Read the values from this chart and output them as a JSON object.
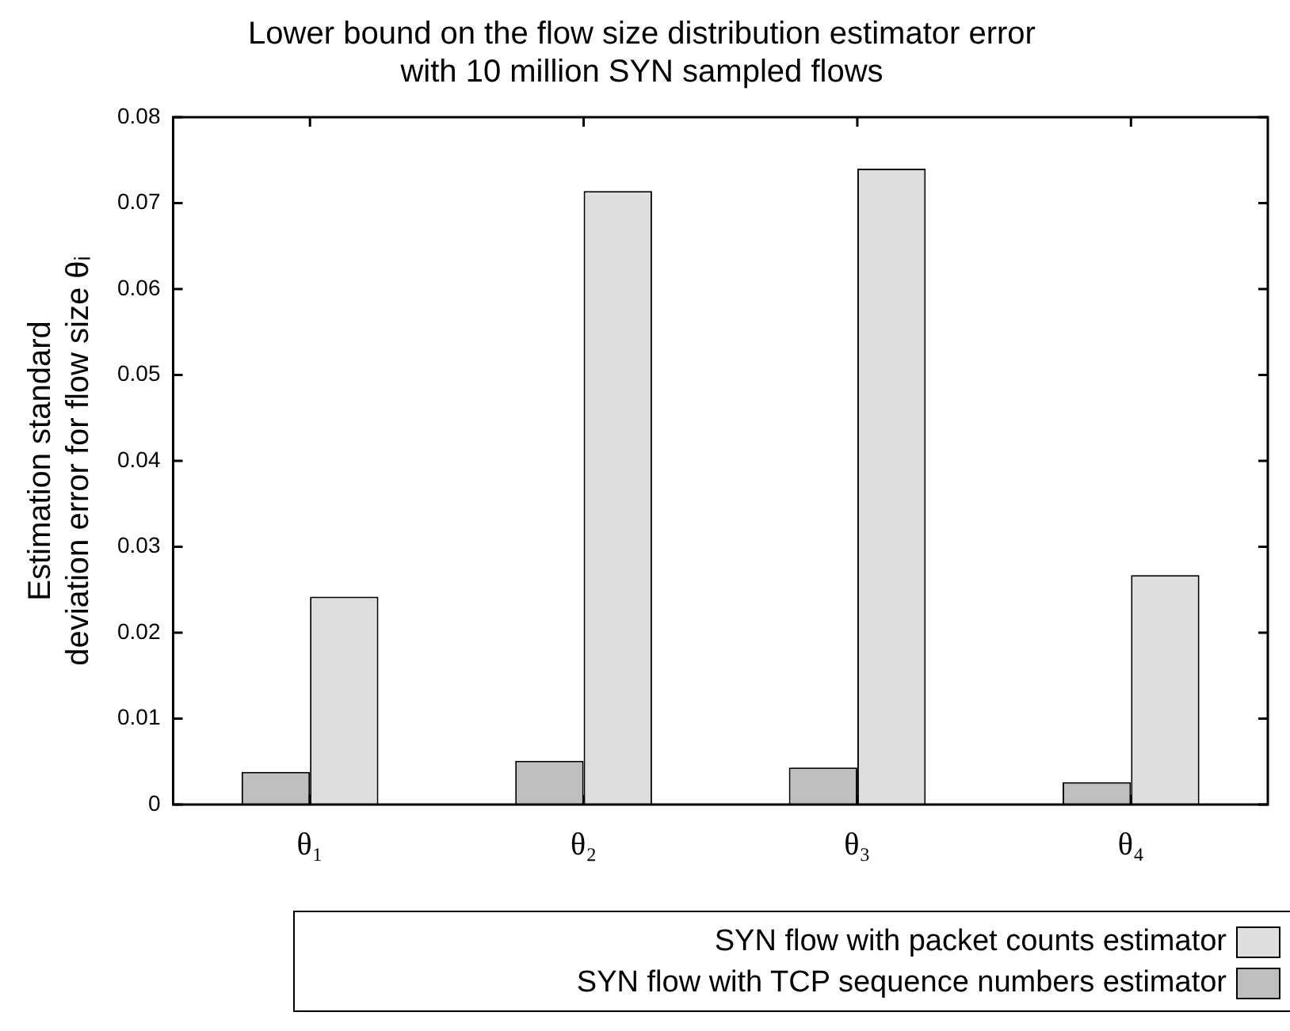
{
  "chart_data": {
    "type": "bar",
    "title": "Lower bound on the flow size distribution estimator error\nwith 10 million SYN sampled flows",
    "ylabel": "Estimation standard\ndeviation error for flow size θᵢ",
    "categories": [
      "θ₁",
      "θ₂",
      "θ₃",
      "θ₄"
    ],
    "series": [
      {
        "name": "SYN flow with TCP sequence numbers estimator",
        "color": "#bfbfbf",
        "values": [
          0.0038,
          0.0051,
          0.0043,
          0.0026
        ]
      },
      {
        "name": "SYN flow with packet counts estimator",
        "color": "#dedede",
        "values": [
          0.0242,
          0.0714,
          0.074,
          0.0267
        ]
      }
    ],
    "ylim": [
      0,
      0.08
    ],
    "yticks": [
      0,
      0.01,
      0.02,
      0.03,
      0.04,
      0.05,
      0.06,
      0.07,
      0.08
    ],
    "grid": false,
    "legend": "bottom right"
  }
}
